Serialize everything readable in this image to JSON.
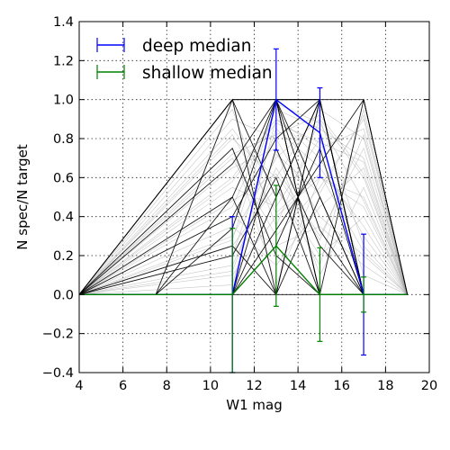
{
  "chart_data": {
    "type": "line",
    "xlabel": "W1 mag",
    "ylabel": "N spec/N target",
    "xlim": [
      4,
      20
    ],
    "ylim": [
      -0.4,
      1.4
    ],
    "grid": true,
    "x_ticks": [
      4,
      6,
      8,
      10,
      12,
      14,
      16,
      18,
      20
    ],
    "y_ticks": [
      -0.4,
      -0.2,
      0.0,
      0.2,
      0.4,
      0.6,
      0.8,
      1.0,
      1.2,
      1.4
    ],
    "y_tick_labels": [
      "−0.4",
      "−0.2",
      "0.0",
      "0.2",
      "0.4",
      "0.6",
      "0.8",
      "1.0",
      "1.2",
      "1.4"
    ],
    "legend_position": "top-left",
    "series": [
      {
        "name": "deep median",
        "color": "#0000ff",
        "x": [
          4,
          11,
          13,
          15,
          17,
          19
        ],
        "y": [
          0.0,
          0.0,
          1.0,
          0.83,
          0.0,
          0.0
        ],
        "error_bars": [
          {
            "x": 11,
            "y": 0.0,
            "low": -0.4,
            "high": 0.4
          },
          {
            "x": 13,
            "y": 1.0,
            "low": 0.74,
            "high": 1.26
          },
          {
            "x": 15,
            "y": 0.83,
            "low": 0.6,
            "high": 1.06
          },
          {
            "x": 17,
            "y": 0.0,
            "low": -0.31,
            "high": 0.31
          }
        ]
      },
      {
        "name": "shallow median",
        "color": "#008000",
        "x": [
          4,
          11,
          13,
          15,
          17,
          19
        ],
        "y": [
          0.0,
          0.0,
          0.25,
          0.0,
          0.0,
          0.0
        ],
        "error_bars": [
          {
            "x": 11,
            "y": 0.0,
            "low": -0.4,
            "high": 0.34
          },
          {
            "x": 13,
            "y": 0.25,
            "low": -0.06,
            "high": 0.56
          },
          {
            "x": 15,
            "y": 0.0,
            "low": -0.24,
            "high": 0.24
          },
          {
            "x": 17,
            "y": 0.0,
            "low": -0.09,
            "high": 0.09
          }
        ]
      }
    ],
    "background_individual_lines": {
      "color": "#000000",
      "black_lines": [
        [
          [
            4,
            0
          ],
          [
            7.5,
            0
          ],
          [
            11,
            1
          ],
          [
            17,
            1
          ],
          [
            19,
            0
          ]
        ],
        [
          [
            4,
            0
          ],
          [
            7.5,
            0
          ],
          [
            11,
            0.5
          ],
          [
            13,
            1
          ],
          [
            15,
            0
          ],
          [
            19,
            0
          ]
        ],
        [
          [
            4,
            0
          ],
          [
            7.5,
            0
          ],
          [
            11,
            0.34
          ],
          [
            13,
            1
          ],
          [
            15,
            1
          ],
          [
            17,
            0
          ],
          [
            19,
            0
          ]
        ],
        [
          [
            4,
            0
          ],
          [
            11,
            0
          ],
          [
            13,
            1
          ],
          [
            15,
            1
          ],
          [
            17,
            0
          ],
          [
            19,
            0
          ]
        ],
        [
          [
            4,
            0
          ],
          [
            11,
            0
          ],
          [
            13,
            0.5
          ],
          [
            15,
            1
          ],
          [
            17,
            0
          ],
          [
            19,
            0
          ]
        ],
        [
          [
            4,
            0
          ],
          [
            11,
            1
          ],
          [
            13,
            0
          ],
          [
            15,
            0
          ],
          [
            19,
            0
          ]
        ],
        [
          [
            4,
            0
          ],
          [
            11,
            0
          ],
          [
            13,
            1
          ],
          [
            15,
            0
          ],
          [
            17,
            1
          ],
          [
            19,
            0
          ]
        ],
        [
          [
            4,
            0
          ],
          [
            11,
            0.25
          ],
          [
            13,
            0
          ],
          [
            15,
            0.5
          ],
          [
            17,
            0
          ],
          [
            19,
            0
          ]
        ],
        [
          [
            4,
            0
          ],
          [
            11,
            0.75
          ],
          [
            13,
            0.2
          ],
          [
            15,
            0
          ],
          [
            19,
            0
          ]
        ],
        [
          [
            4,
            0
          ],
          [
            11,
            0
          ],
          [
            13,
            0.75
          ],
          [
            15,
            0.25
          ],
          [
            17,
            0
          ],
          [
            19,
            0
          ]
        ],
        [
          [
            4,
            0
          ],
          [
            11,
            0.5
          ],
          [
            13,
            0
          ],
          [
            15,
            1
          ],
          [
            17,
            0
          ],
          [
            19,
            0
          ]
        ],
        [
          [
            4,
            0
          ],
          [
            11,
            1
          ],
          [
            13,
            0.5
          ],
          [
            15,
            1
          ],
          [
            17,
            0
          ],
          [
            19,
            0
          ]
        ],
        [
          [
            4,
            0
          ],
          [
            11,
            0
          ],
          [
            13,
            0.33
          ],
          [
            15,
            0.67
          ],
          [
            17,
            1
          ],
          [
            19,
            0
          ]
        ],
        [
          [
            4,
            0
          ],
          [
            11,
            0.67
          ],
          [
            13,
            1
          ],
          [
            15,
            0.5
          ],
          [
            17,
            0
          ],
          [
            19,
            0
          ]
        ],
        [
          [
            4,
            0
          ],
          [
            11,
            0
          ],
          [
            13,
            1
          ],
          [
            15,
            0.33
          ],
          [
            17,
            0
          ],
          [
            19,
            0
          ]
        ],
        [
          [
            4,
            0
          ],
          [
            11,
            0.2
          ],
          [
            13,
            0.6
          ],
          [
            15,
            0
          ],
          [
            17,
            0
          ],
          [
            19,
            0
          ]
        ],
        [
          [
            4,
            0
          ],
          [
            11,
            0
          ],
          [
            13,
            0.25
          ],
          [
            15,
            0.75
          ],
          [
            17,
            0
          ],
          [
            19,
            0
          ]
        ],
        [
          [
            4,
            0
          ],
          [
            11,
            1
          ],
          [
            13,
            1
          ],
          [
            15,
            0
          ],
          [
            17,
            0
          ],
          [
            19,
            0
          ]
        ],
        [
          [
            4,
            0
          ],
          [
            11,
            0
          ],
          [
            13,
            0
          ],
          [
            15,
            1
          ],
          [
            17,
            0
          ],
          [
            19,
            0
          ]
        ],
        [
          [
            4,
            0
          ],
          [
            11,
            0.4
          ],
          [
            13,
            0.8
          ],
          [
            15,
            1
          ],
          [
            17,
            0
          ],
          [
            19,
            0
          ]
        ]
      ],
      "gray_lines": [
        [
          [
            4,
            0
          ],
          [
            11,
            0.6
          ],
          [
            13,
            0.9
          ],
          [
            15,
            0.7
          ],
          [
            17,
            0.3
          ],
          [
            19,
            0
          ]
        ],
        [
          [
            4,
            0
          ],
          [
            11,
            0.3
          ],
          [
            13,
            0.7
          ],
          [
            15,
            0.9
          ],
          [
            17,
            0.6
          ],
          [
            19,
            0
          ]
        ],
        [
          [
            4,
            0
          ],
          [
            11,
            0.8
          ],
          [
            13,
            0.6
          ],
          [
            15,
            0.95
          ],
          [
            17,
            0.8
          ],
          [
            19,
            0
          ]
        ],
        [
          [
            4,
            0
          ],
          [
            11,
            0.1
          ],
          [
            13,
            0.4
          ],
          [
            15,
            0.6
          ],
          [
            17,
            0.5
          ],
          [
            19,
            0
          ]
        ],
        [
          [
            4,
            0
          ],
          [
            11,
            0.9
          ],
          [
            13,
            0.8
          ],
          [
            15,
            0.4
          ],
          [
            17,
            0.2
          ],
          [
            19,
            0
          ]
        ],
        [
          [
            4,
            0
          ],
          [
            11,
            0.45
          ],
          [
            13,
            0.95
          ],
          [
            15,
            0.85
          ],
          [
            17,
            0.7
          ],
          [
            19,
            0
          ]
        ],
        [
          [
            4,
            0
          ],
          [
            11,
            0.7
          ],
          [
            13,
            0.3
          ],
          [
            15,
            0.55
          ],
          [
            17,
            0.9
          ],
          [
            19,
            0
          ]
        ],
        [
          [
            4,
            0
          ],
          [
            11,
            0.2
          ],
          [
            13,
            0.85
          ],
          [
            15,
            0.65
          ],
          [
            17,
            0.35
          ],
          [
            19,
            0
          ]
        ],
        [
          [
            4,
            0
          ],
          [
            11,
            0.55
          ],
          [
            13,
            0.45
          ],
          [
            15,
            0.8
          ],
          [
            17,
            0.1
          ],
          [
            19,
            0
          ]
        ],
        [
          [
            4,
            0
          ],
          [
            11,
            0.15
          ],
          [
            13,
            0.65
          ],
          [
            15,
            0.3
          ],
          [
            17,
            0.75
          ],
          [
            19,
            0
          ]
        ],
        [
          [
            4,
            0
          ],
          [
            11,
            0.85
          ],
          [
            13,
            0.55
          ],
          [
            15,
            0.2
          ],
          [
            17,
            0.4
          ],
          [
            19,
            0
          ]
        ],
        [
          [
            4,
            0
          ],
          [
            11,
            0.35
          ],
          [
            13,
            0.15
          ],
          [
            15,
            0.45
          ],
          [
            17,
            0.65
          ],
          [
            19,
            0
          ]
        ],
        [
          [
            4,
            0
          ],
          [
            11,
            0.65
          ],
          [
            13,
            0.75
          ],
          [
            15,
            0.1
          ],
          [
            17,
            0.55
          ],
          [
            19,
            0
          ]
        ],
        [
          [
            4,
            0
          ],
          [
            11,
            0.05
          ],
          [
            13,
            0.9
          ],
          [
            15,
            0.75
          ],
          [
            17,
            0.85
          ],
          [
            19,
            0
          ]
        ],
        [
          [
            4,
            0
          ],
          [
            11,
            0.95
          ],
          [
            13,
            0.35
          ],
          [
            15,
            0.9
          ],
          [
            17,
            0.25
          ],
          [
            19,
            0
          ]
        ],
        [
          [
            4,
            0
          ],
          [
            11,
            0.25
          ],
          [
            13,
            0.55
          ],
          [
            15,
            0.15
          ],
          [
            17,
            0.95
          ],
          [
            19,
            0
          ]
        ],
        [
          [
            4,
            0
          ],
          [
            11,
            0.75
          ],
          [
            13,
            0.05
          ],
          [
            15,
            0.6
          ],
          [
            17,
            0.45
          ],
          [
            19,
            0
          ]
        ],
        [
          [
            4,
            0
          ],
          [
            11,
            0.4
          ],
          [
            13,
            0.25
          ],
          [
            15,
            0.35
          ],
          [
            17,
            0.15
          ],
          [
            19,
            0
          ]
        ],
        [
          [
            4,
            0
          ],
          [
            11,
            0.58
          ],
          [
            13,
            0.88
          ],
          [
            15,
            0.78
          ],
          [
            17,
            0.68
          ],
          [
            19,
            0
          ]
        ],
        [
          [
            4,
            0
          ],
          [
            11,
            0.12
          ],
          [
            13,
            0.72
          ],
          [
            15,
            0.52
          ],
          [
            17,
            0.92
          ],
          [
            19,
            0
          ]
        ],
        [
          [
            4,
            0
          ],
          [
            11,
            0.82
          ],
          [
            13,
            0.42
          ],
          [
            15,
            0.62
          ],
          [
            17,
            0.22
          ],
          [
            19,
            0
          ]
        ],
        [
          [
            4,
            0
          ],
          [
            11,
            0.28
          ],
          [
            13,
            0.98
          ],
          [
            15,
            0.88
          ],
          [
            17,
            0.48
          ],
          [
            19,
            0
          ]
        ],
        [
          [
            4,
            0
          ],
          [
            11,
            0.48
          ],
          [
            13,
            0.62
          ],
          [
            15,
            0.28
          ],
          [
            17,
            0.82
          ],
          [
            19,
            0
          ]
        ],
        [
          [
            4,
            0
          ],
          [
            11,
            0.72
          ],
          [
            13,
            0.82
          ],
          [
            15,
            0.92
          ],
          [
            17,
            0.62
          ],
          [
            19,
            0
          ]
        ]
      ]
    }
  }
}
